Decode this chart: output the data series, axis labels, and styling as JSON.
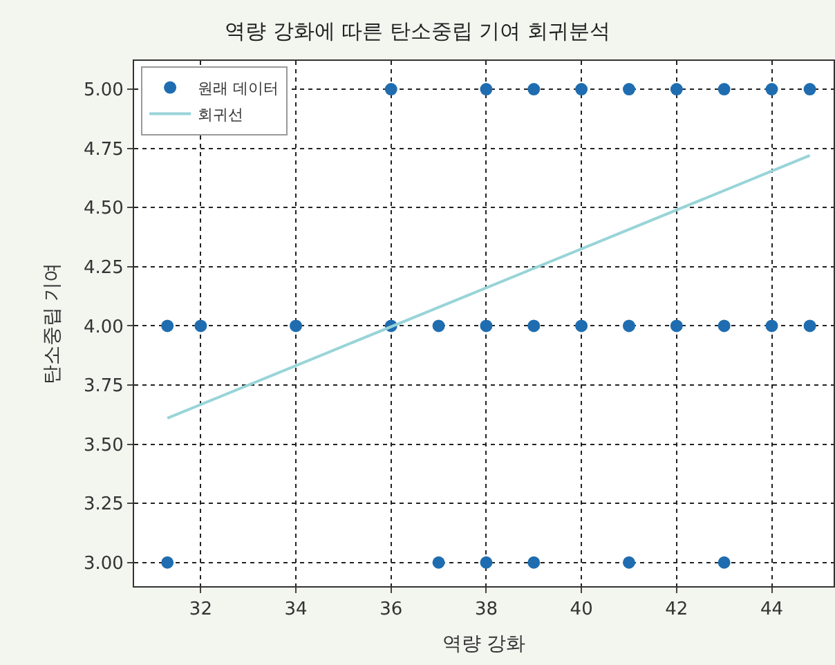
{
  "chart_data": {
    "type": "scatter",
    "title": "역량 강화에 따른 탄소중립 기여 회귀분석",
    "xlabel": "역량 강화",
    "ylabel": "탄소중립 기여",
    "series": [
      {
        "name": "원래 데이터",
        "type": "scatter",
        "marker": "circle",
        "color": "#1f6db0",
        "x": [
          36,
          38,
          39,
          40,
          41,
          42,
          43,
          44,
          44.8,
          31.3,
          32,
          34,
          36,
          37,
          38,
          39,
          40,
          41,
          42,
          43,
          44,
          44.8,
          31.3,
          37,
          38,
          39,
          41,
          43
        ],
        "values": [
          5,
          5,
          5,
          5,
          5,
          5,
          5,
          5,
          5,
          4,
          4,
          4,
          4,
          4,
          4,
          4,
          4,
          4,
          4,
          4,
          4,
          4,
          3,
          3,
          3,
          3,
          3,
          3
        ]
      },
      {
        "name": "회귀선",
        "type": "line",
        "marker": "none",
        "line_style": "solid",
        "color": "#98d4d8",
        "x": [
          31.3,
          44.8
        ],
        "values": [
          3.61,
          4.72
        ]
      }
    ],
    "xlim": [
      30.6,
      45.3
    ],
    "xticks": [
      32,
      34,
      36,
      38,
      40,
      42,
      44
    ],
    "ylim": [
      2.9,
      5.12
    ],
    "yticks": [
      {
        "value": 3,
        "label": "3.00"
      },
      {
        "value": 3.25,
        "label": "3.25"
      },
      {
        "value": 3.5,
        "label": "3.50"
      },
      {
        "value": 3.75,
        "label": "3.75"
      },
      {
        "value": 4,
        "label": "4.00"
      },
      {
        "value": 4.25,
        "label": "4.25"
      },
      {
        "value": 4.5,
        "label": "4.50"
      },
      {
        "value": 4.75,
        "label": "4.75"
      },
      {
        "value": 5,
        "label": "5.00"
      }
    ],
    "grid": true,
    "legend": "top left"
  }
}
